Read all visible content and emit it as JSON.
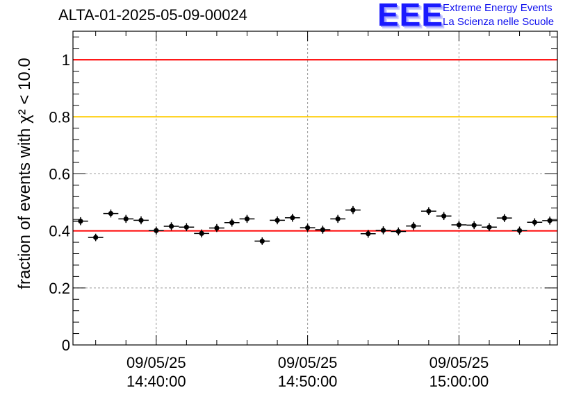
{
  "header": {
    "title": "ALTA-01-2025-05-09-00024",
    "logo_mark": "EEE",
    "logo_line1": "Extreme Energy Events",
    "logo_line2": "La Scienza nelle Scuole"
  },
  "chart_data": {
    "type": "scatter",
    "title": "ALTA-01-2025-05-09-00024",
    "xlabel": "",
    "ylabel": "fraction of events with χ² < 10.0",
    "ylim": [
      0,
      1.1
    ],
    "xlim": [
      "2025-05-09 14:34:30",
      "2025-05-09 15:06:30"
    ],
    "grid": true,
    "y_ticks": [
      "0",
      "0.2",
      "0.4",
      "0.6",
      "0.8",
      "1"
    ],
    "x_ticks": [
      {
        "date": "09/05/25",
        "time": "14:40:00"
      },
      {
        "date": "09/05/25",
        "time": "14:50:00"
      },
      {
        "date": "09/05/25",
        "time": "15:00:00"
      }
    ],
    "reference_lines": [
      {
        "y": 1.0,
        "color": "#ff0000"
      },
      {
        "y": 0.8,
        "color": "#ffcc00"
      },
      {
        "y": 0.4,
        "color": "#ff0000"
      }
    ],
    "series": [
      {
        "x": [
          "14:35:00",
          "14:36:00",
          "14:37:00",
          "14:38:00",
          "14:39:00",
          "14:40:00",
          "14:41:00",
          "14:42:00",
          "14:43:00",
          "14:44:00",
          "14:45:00",
          "14:46:00",
          "14:47:00",
          "14:48:00",
          "14:49:00",
          "14:50:00",
          "14:51:00",
          "14:52:00",
          "14:53:00",
          "14:54:00",
          "14:55:00",
          "14:56:00",
          "14:57:00",
          "14:58:00",
          "14:59:00",
          "15:00:00",
          "15:01:00",
          "15:02:00",
          "15:03:00",
          "15:04:00",
          "15:05:00",
          "15:06:00"
        ],
        "values": [
          0.434,
          0.377,
          0.461,
          0.442,
          0.437,
          0.401,
          0.416,
          0.413,
          0.391,
          0.41,
          0.429,
          0.442,
          0.364,
          0.437,
          0.446,
          0.411,
          0.404,
          0.442,
          0.473,
          0.39,
          0.402,
          0.398,
          0.417,
          0.469,
          0.452,
          0.421,
          0.42,
          0.413,
          0.445,
          0.401,
          0.43,
          0.436
        ],
        "errors": [
          0.014,
          0.013,
          0.014,
          0.014,
          0.014,
          0.014,
          0.014,
          0.014,
          0.014,
          0.014,
          0.014,
          0.014,
          0.013,
          0.014,
          0.014,
          0.014,
          0.014,
          0.014,
          0.014,
          0.014,
          0.014,
          0.014,
          0.014,
          0.014,
          0.014,
          0.014,
          0.014,
          0.014,
          0.014,
          0.014,
          0.014,
          0.014
        ]
      }
    ]
  }
}
